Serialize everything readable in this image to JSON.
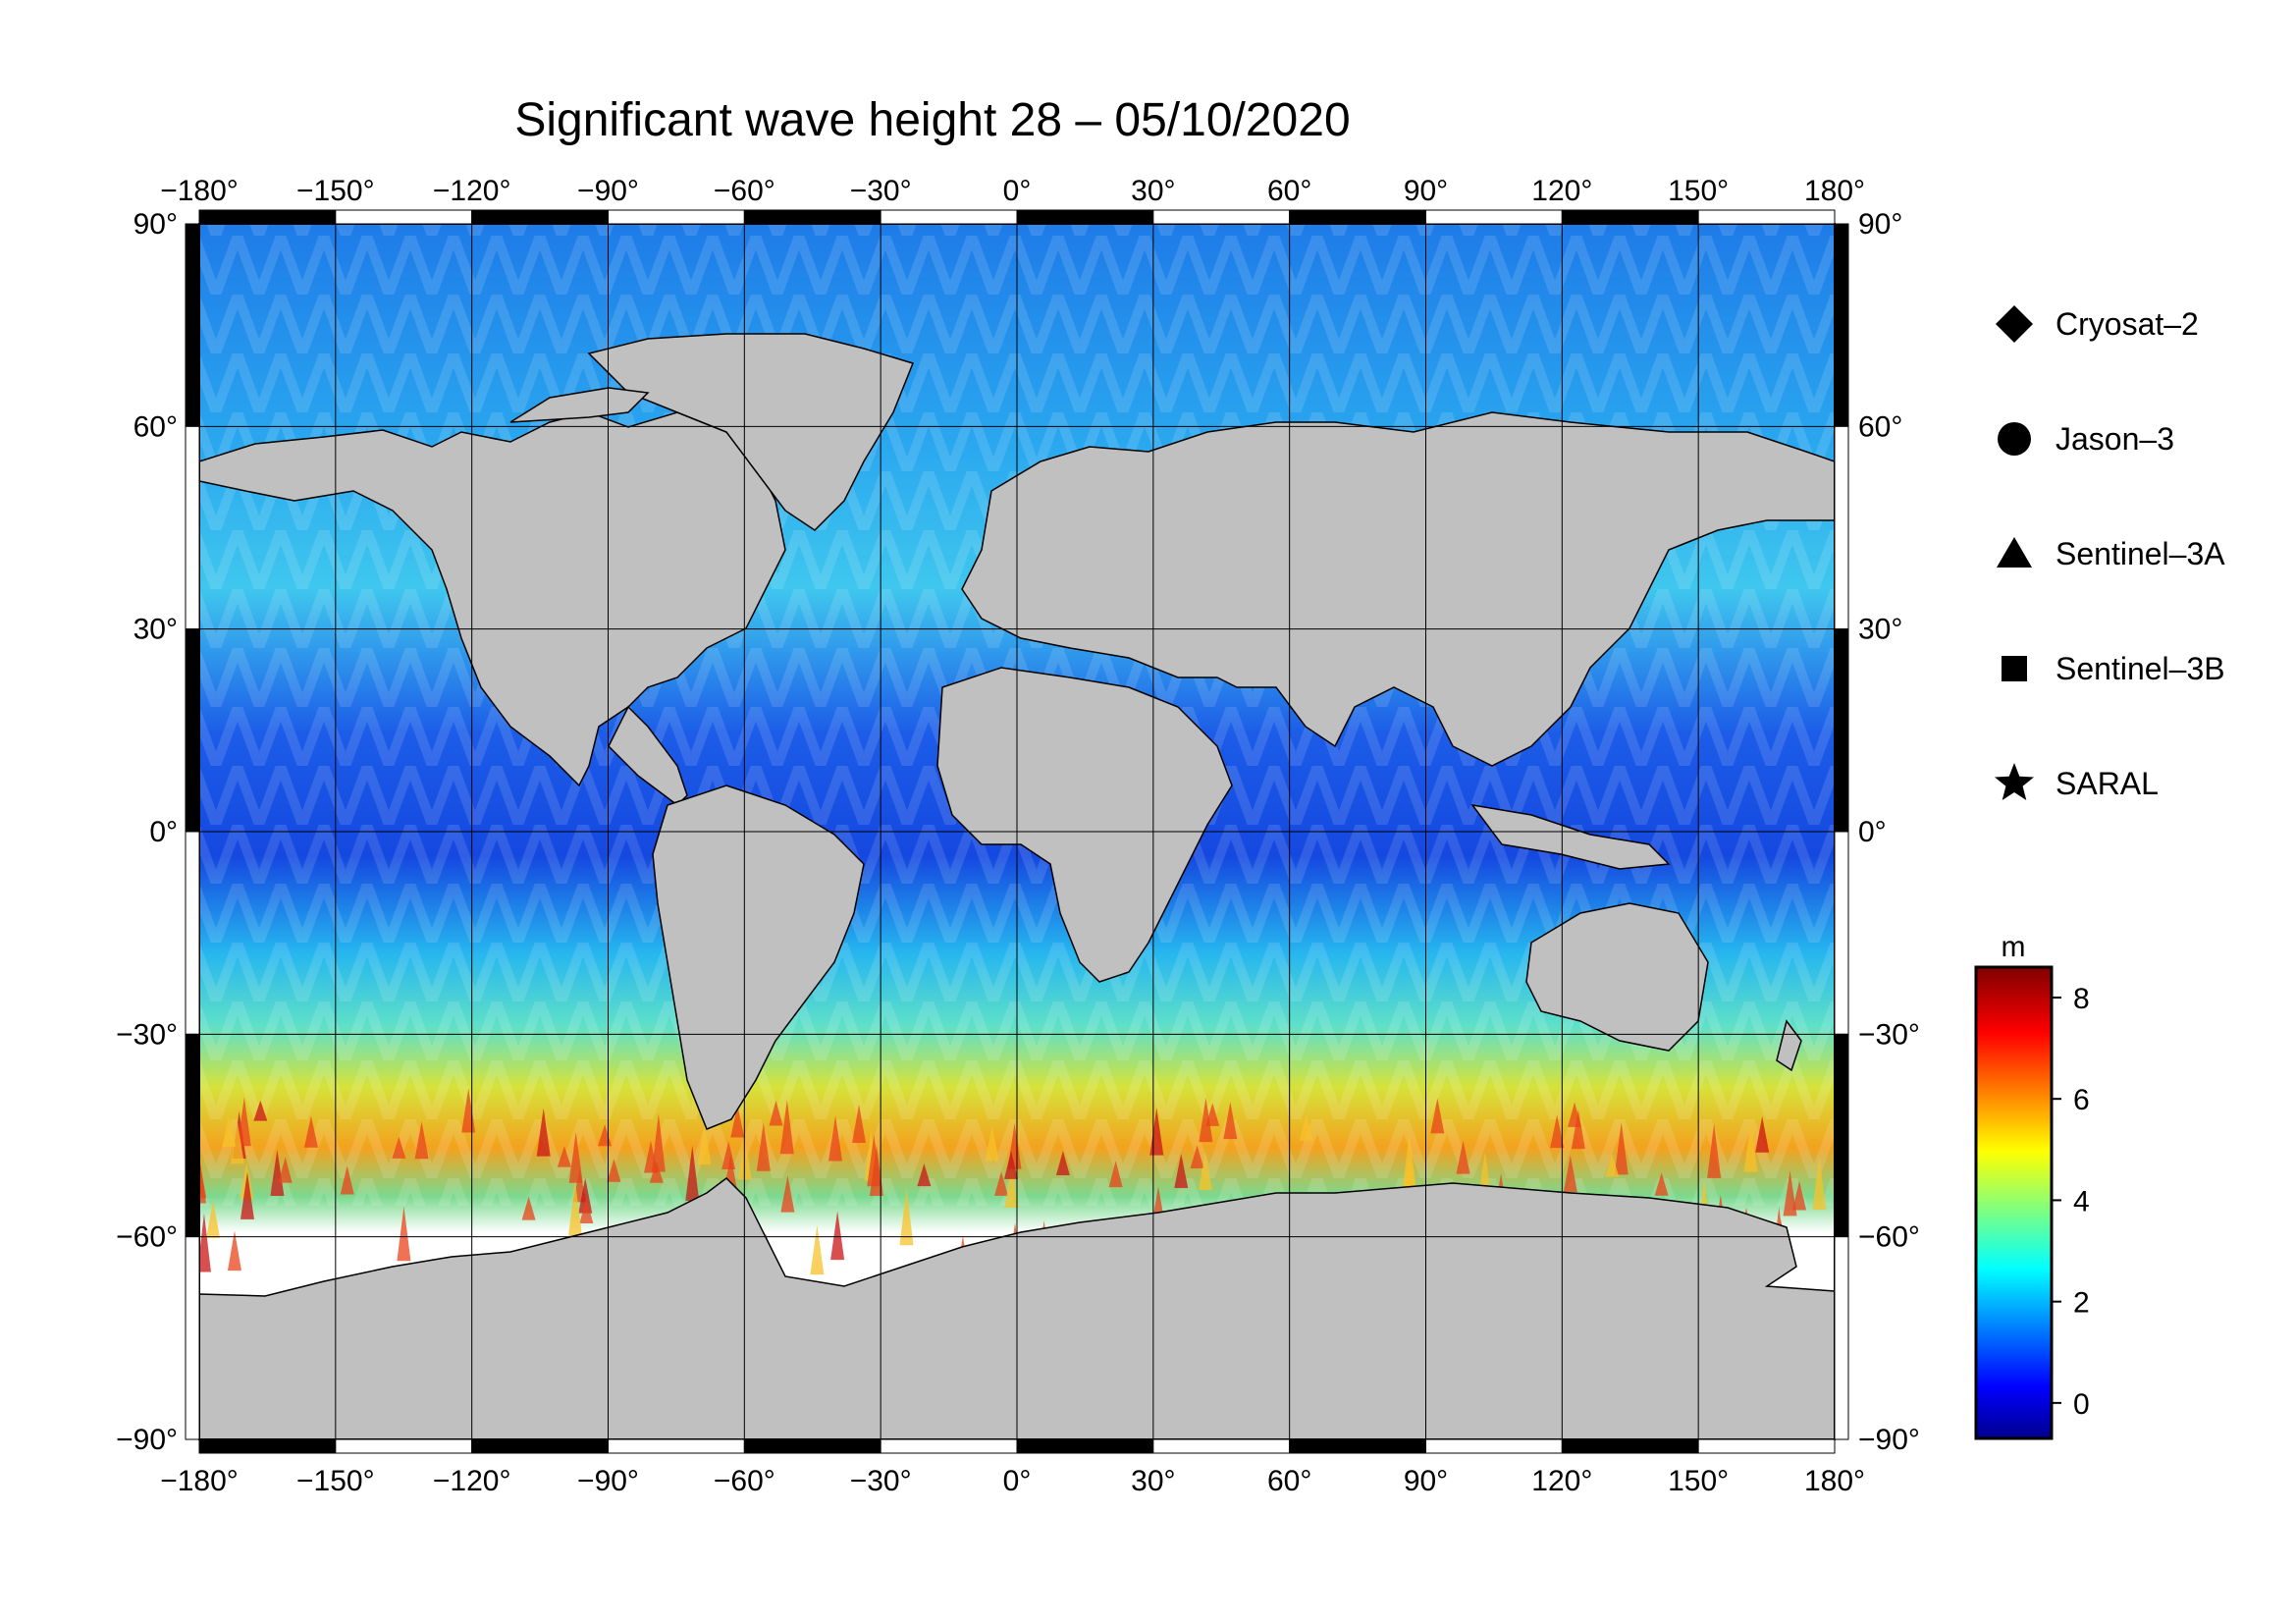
{
  "title": "Significant wave height 28 – 05/10/2020",
  "map": {
    "projection": "equirectangular",
    "lon_range": [
      -180,
      180
    ],
    "lat_range": [
      -90,
      90
    ],
    "lon_ticks": [
      "−180°",
      "−150°",
      "−120°",
      "−90°",
      "−60°",
      "−30°",
      "0°",
      "30°",
      "60°",
      "90°",
      "120°",
      "150°",
      "180°"
    ],
    "lat_ticks_left": [
      "90°",
      "60°",
      "30°",
      "0°",
      "−30°",
      "−60°",
      "−90°"
    ],
    "lat_ticks_right": [
      "90°",
      "60°",
      "30°",
      "0°",
      "−30°",
      "−60°",
      "−90°"
    ],
    "grid": true,
    "colors": {
      "land": "#c0c0c0",
      "ice": "#ffffff",
      "ocean_low": "#1010d0",
      "ocean_high": "#d01010"
    }
  },
  "legend": {
    "items": [
      {
        "label": "Cryosat–2",
        "marker": "diamond"
      },
      {
        "label": "Jason–3",
        "marker": "circle"
      },
      {
        "label": "Sentinel–3A",
        "marker": "triangle"
      },
      {
        "label": "Sentinel–3B",
        "marker": "square"
      },
      {
        "label": "SARAL",
        "marker": "star"
      }
    ]
  },
  "colorbar": {
    "unit": "m",
    "min": -0.7,
    "max": 8.6,
    "ticks": [
      "0",
      "2",
      "4",
      "6",
      "8"
    ],
    "tick_values": [
      0,
      2,
      4,
      6,
      8
    ],
    "colormap": "jet"
  }
}
